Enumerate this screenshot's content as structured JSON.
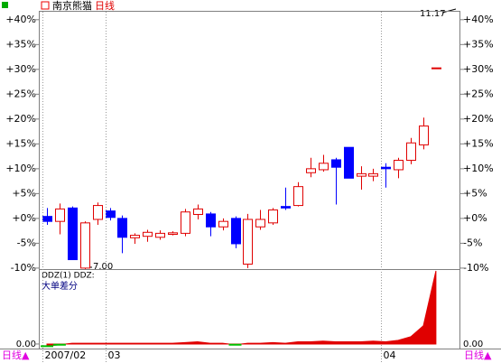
{
  "chart_data": {
    "type": "candlestick",
    "title": "南京熊猫",
    "subtitle": "日线",
    "price_high_label": "11.17",
    "price_low_label": "7.00",
    "categories": [
      "2007/02",
      null,
      null,
      null,
      null,
      "03",
      null,
      null,
      null,
      null,
      null,
      null,
      null,
      null,
      null,
      null,
      null,
      null,
      null,
      null,
      null,
      null,
      null,
      null,
      null,
      null,
      null,
      "04",
      null,
      null,
      null,
      null
    ],
    "open": [
      0.4,
      -0.6,
      2.1,
      -10,
      -0.2,
      1.5,
      0,
      -3.9,
      -3.6,
      -3.8,
      -3.2,
      -3,
      0.8,
      0.9,
      -1.7,
      0,
      -9.2,
      -1.7,
      -0.9,
      2.4,
      2.6,
      9.2,
      9.8,
      11.8,
      14.3,
      8.5,
      8.5,
      10.3,
      9.8,
      11.7,
      14.8,
      30.3
    ],
    "close": [
      -0.6,
      1.9,
      -8.3,
      -0.9,
      2.6,
      0.2,
      -3.8,
      -3.4,
      -2.8,
      -3,
      -2.9,
      1.3,
      1.9,
      -1.7,
      -0.6,
      -5.1,
      -0.2,
      -0.2,
      1.7,
      2.1,
      6.4,
      10,
      11.1,
      10.3,
      8.1,
      9,
      9,
      10,
      11.7,
      15.2,
      18.6,
      30.3
    ],
    "high": [
      2.1,
      3,
      2.4,
      -0.6,
      3.2,
      2.1,
      0.6,
      -3,
      -2.3,
      -2.4,
      -2.6,
      1.9,
      2.8,
      1.3,
      0,
      0.4,
      0.9,
      1.7,
      2.1,
      6.2,
      7.3,
      12.2,
      12.8,
      12.2,
      14.3,
      10.5,
      10,
      11.1,
      12.2,
      16.2,
      20.3,
      30.3
    ],
    "low": [
      -1.3,
      -3.2,
      -8.3,
      -10.2,
      -1.3,
      -0.4,
      -7,
      -5.1,
      -4.7,
      -4.3,
      -3.4,
      -3.6,
      -0.2,
      -3.6,
      -2.4,
      -6,
      -10,
      -2.3,
      -1.3,
      1.7,
      2.4,
      8.3,
      9.4,
      2.8,
      8.1,
      5.8,
      7.5,
      6.2,
      8.1,
      10.9,
      13.9,
      30.3
    ],
    "up_color": "#e00000",
    "down_color": "#0000ff",
    "ylim": [
      -10.2,
      41.6
    ],
    "yticks": [
      {
        "value": 40,
        "label": "+40%"
      },
      {
        "value": 35,
        "label": "+35%"
      },
      {
        "value": 30,
        "label": "+30%"
      },
      {
        "value": 25,
        "label": "+25%"
      },
      {
        "value": 20,
        "label": "+20%"
      },
      {
        "value": 15,
        "label": "+15%"
      },
      {
        "value": 10,
        "label": "+10%"
      },
      {
        "value": 5,
        "label": "+5%"
      },
      {
        "value": 0,
        "label": "+0%"
      },
      {
        "value": -5,
        "label": "-5%"
      },
      {
        "value": -10,
        "label": "-10%"
      }
    ],
    "indicator": {
      "title": "DDZ(1) DDZ:",
      "name": "大单差分",
      "color": "#e00000",
      "negative_color": "#00c000",
      "values": [
        -0.03,
        -0.01,
        0.01,
        0.01,
        0.01,
        0.01,
        0.01,
        0.01,
        0.01,
        0.01,
        0.01,
        0.02,
        0.03,
        0.01,
        0.01,
        -0.01,
        0.01,
        0.01,
        0.02,
        0.01,
        0.03,
        0.03,
        0.04,
        0.03,
        0.03,
        0.03,
        0.04,
        0.03,
        0.05,
        0.1,
        0.25,
        1.0
      ],
      "ylim": [
        -0.05,
        1.0
      ],
      "yticks": [
        {
          "value": 0,
          "label": "0.00"
        }
      ]
    },
    "footer_label": "日线▲"
  }
}
